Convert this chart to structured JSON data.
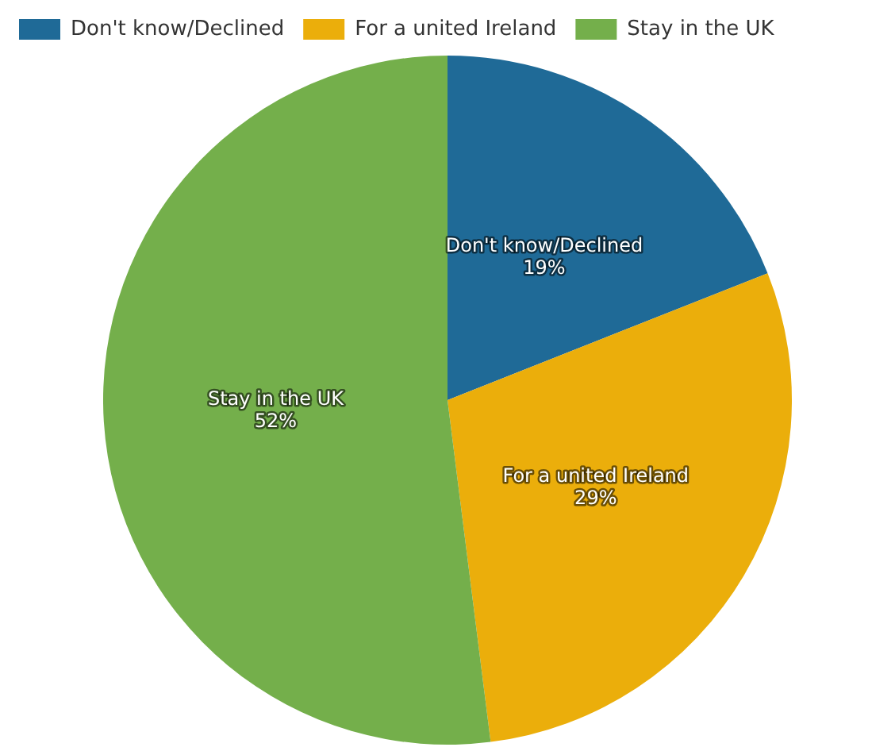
{
  "chart_data": {
    "type": "pie",
    "categories": [
      "Don't know/Declined",
      "For a united Ireland",
      "Stay in the UK"
    ],
    "values": [
      19,
      29,
      52
    ],
    "colors": [
      "#1f6a97",
      "#ebae0b",
      "#74af4b"
    ],
    "value_labels": [
      "19%",
      "29%",
      "52%"
    ],
    "legend": "top left"
  }
}
